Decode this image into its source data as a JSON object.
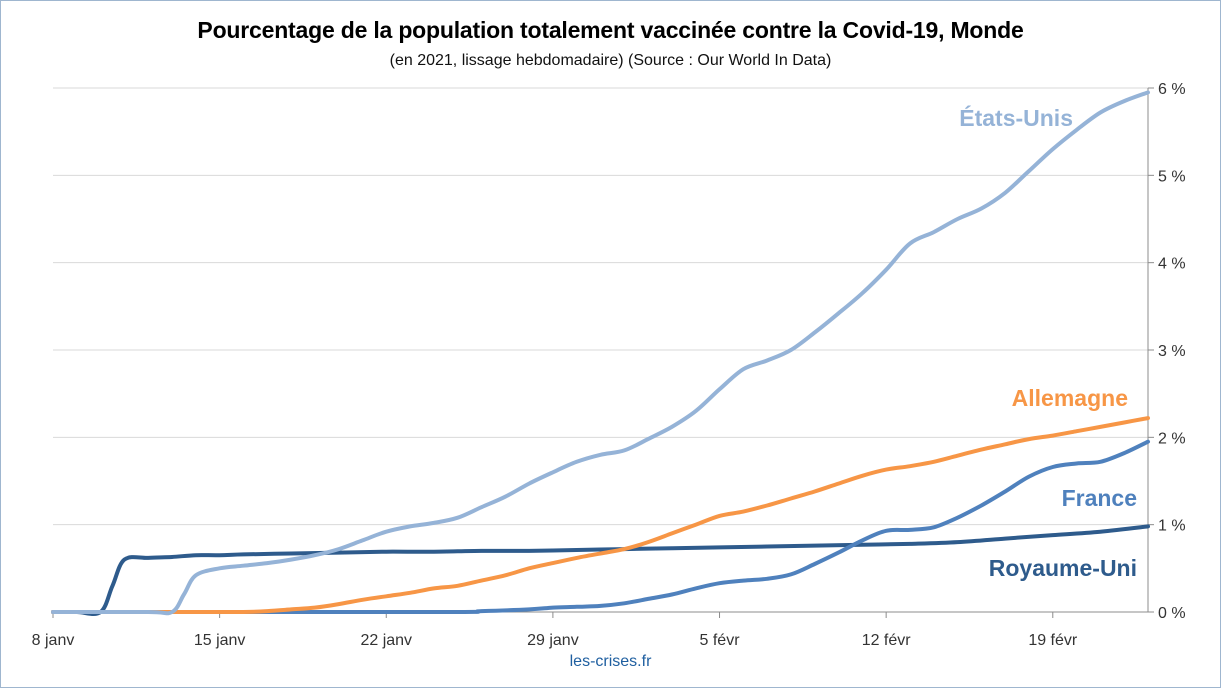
{
  "chart_data": {
    "type": "line",
    "title": "Pourcentage de la population totalement vaccinée contre la Covid-19, Monde",
    "subtitle": "(en 2021, lissage hebdomadaire) (Source : Our World In Data)",
    "source_credit": "les-crises.fr",
    "x_tick_labels": [
      "8 janv",
      "15 janv",
      "22 janv",
      "29 janv",
      "5 févr",
      "12 févr",
      "19 févr"
    ],
    "x_tick_days": [
      0,
      7,
      14,
      21,
      28,
      35,
      42
    ],
    "x_range_days": [
      0,
      46
    ],
    "y_ticks": [
      0,
      1,
      2,
      3,
      4,
      5,
      6
    ],
    "y_tick_labels": [
      "0 %",
      "1 %",
      "2 %",
      "3 %",
      "4 %",
      "5 %",
      "6 %"
    ],
    "ylim": [
      0,
      6
    ],
    "y_axis_side": "right",
    "grid": true,
    "legend": "inline labels",
    "series": [
      {
        "name": "États-Unis",
        "color": "#95b3d7",
        "x": [
          0,
          4,
          5,
          5.5,
          6,
          7,
          8,
          9,
          10,
          11,
          12,
          13,
          14,
          15,
          16,
          17,
          18,
          19,
          20,
          21,
          22,
          23,
          24,
          25,
          26,
          27,
          28,
          29,
          30,
          31,
          32,
          33,
          34,
          35,
          36,
          37,
          38,
          39,
          40,
          41,
          42,
          43,
          44,
          45,
          46
        ],
        "y": [
          0,
          0,
          0,
          0.2,
          0.42,
          0.5,
          0.53,
          0.56,
          0.6,
          0.65,
          0.72,
          0.82,
          0.92,
          0.98,
          1.02,
          1.08,
          1.2,
          1.32,
          1.47,
          1.6,
          1.72,
          1.8,
          1.85,
          1.98,
          2.12,
          2.3,
          2.55,
          2.78,
          2.88,
          3.0,
          3.2,
          3.42,
          3.65,
          3.92,
          4.22,
          4.35,
          4.5,
          4.62,
          4.8,
          5.05,
          5.3,
          5.52,
          5.72,
          5.85,
          5.95
        ]
      },
      {
        "name": "Allemagne",
        "color": "#f79646",
        "x": [
          0,
          5,
          6,
          7,
          8,
          9,
          10,
          11,
          12,
          13,
          14,
          15,
          16,
          17,
          18,
          19,
          20,
          21,
          22,
          23,
          24,
          25,
          26,
          27,
          28,
          29,
          30,
          31,
          32,
          33,
          34,
          35,
          36,
          37,
          38,
          39,
          40,
          41,
          42,
          43,
          44,
          45,
          46
        ],
        "y": [
          0,
          0,
          0,
          0,
          0,
          0.01,
          0.03,
          0.05,
          0.09,
          0.14,
          0.18,
          0.22,
          0.27,
          0.3,
          0.36,
          0.42,
          0.5,
          0.56,
          0.62,
          0.67,
          0.72,
          0.8,
          0.9,
          1.0,
          1.1,
          1.15,
          1.22,
          1.3,
          1.38,
          1.47,
          1.56,
          1.63,
          1.67,
          1.72,
          1.79,
          1.86,
          1.92,
          1.98,
          2.02,
          2.07,
          2.12,
          2.17,
          2.22
        ]
      },
      {
        "name": "France",
        "color": "#4f81bd",
        "x": [
          0,
          16,
          18,
          20,
          21,
          22,
          23,
          24,
          25,
          26,
          27,
          28,
          29,
          30,
          31,
          32,
          33,
          34,
          35,
          36,
          37,
          38,
          39,
          40,
          41,
          42,
          43,
          44,
          45,
          46
        ],
        "y": [
          0,
          0,
          0.01,
          0.03,
          0.05,
          0.06,
          0.07,
          0.1,
          0.15,
          0.2,
          0.27,
          0.33,
          0.36,
          0.38,
          0.43,
          0.55,
          0.68,
          0.82,
          0.93,
          0.94,
          0.97,
          1.08,
          1.22,
          1.38,
          1.55,
          1.66,
          1.7,
          1.72,
          1.82,
          1.95
        ]
      },
      {
        "name": "Royaume-Uni",
        "color": "#2e5b8c",
        "x": [
          0,
          1,
          2,
          2.5,
          3,
          4,
          5,
          6,
          7,
          8,
          10,
          12,
          14,
          16,
          18,
          20,
          22,
          24,
          26,
          28,
          30,
          32,
          34,
          36,
          38,
          40,
          42,
          44,
          46
        ],
        "y": [
          0,
          0,
          0,
          0.3,
          0.6,
          0.62,
          0.63,
          0.65,
          0.65,
          0.66,
          0.67,
          0.68,
          0.69,
          0.69,
          0.7,
          0.7,
          0.71,
          0.72,
          0.73,
          0.74,
          0.75,
          0.76,
          0.77,
          0.78,
          0.8,
          0.84,
          0.88,
          0.92,
          0.98
        ]
      }
    ]
  }
}
